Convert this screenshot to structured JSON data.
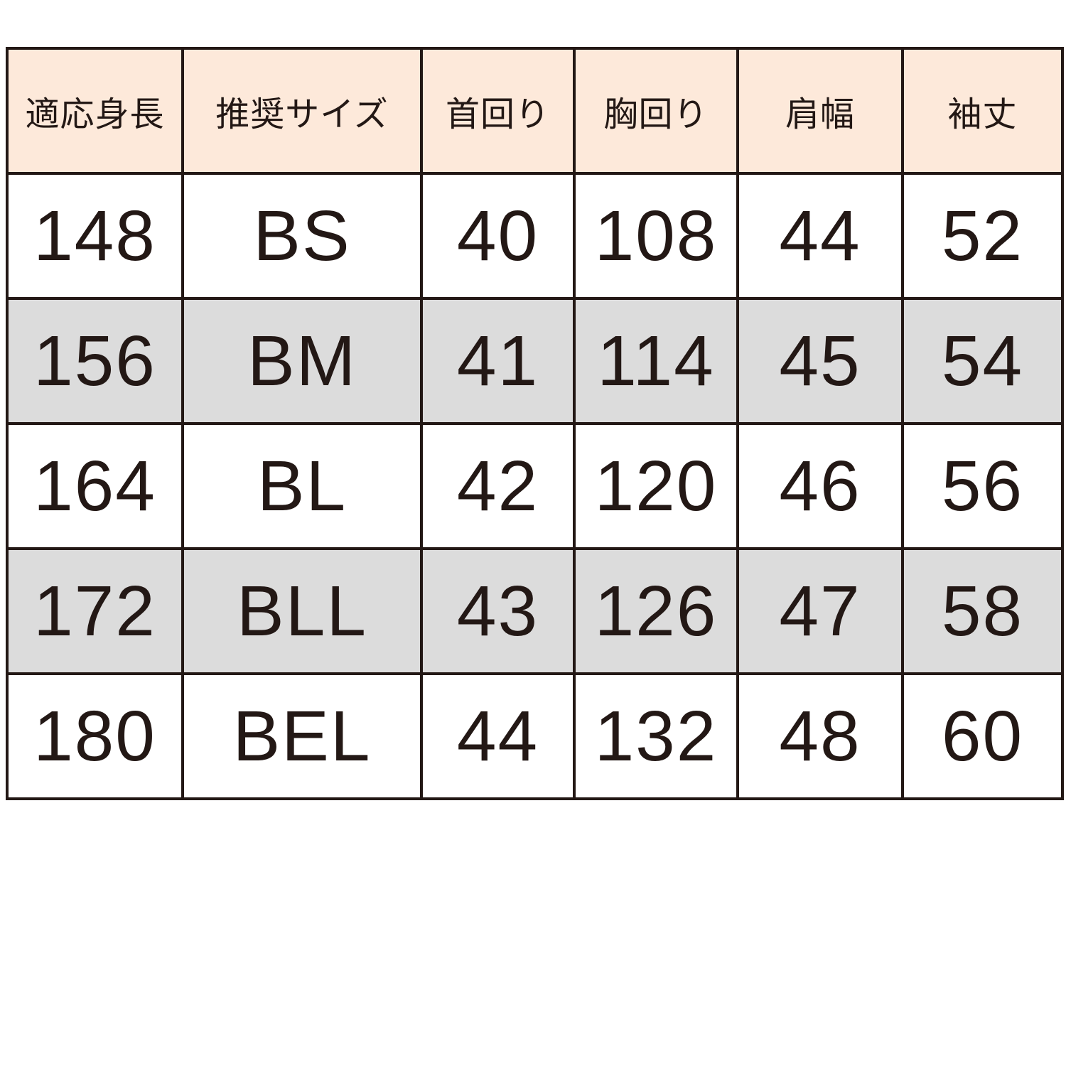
{
  "table": {
    "headers": [
      "適応身長",
      "推奨サイズ",
      "首回り",
      "胸回り",
      "肩幅",
      "袖丈"
    ],
    "rows": [
      [
        "148",
        "BS",
        "40",
        "108",
        "44",
        "52"
      ],
      [
        "156",
        "BM",
        "41",
        "114",
        "45",
        "54"
      ],
      [
        "164",
        "BL",
        "42",
        "120",
        "46",
        "56"
      ],
      [
        "172",
        "BLL",
        "43",
        "126",
        "47",
        "58"
      ],
      [
        "180",
        "BEL",
        "44",
        "132",
        "48",
        "60"
      ]
    ],
    "colors": {
      "header_bg": "#fde9da",
      "shaded_row_bg": "#dcdcdc",
      "border": "#231815"
    }
  }
}
